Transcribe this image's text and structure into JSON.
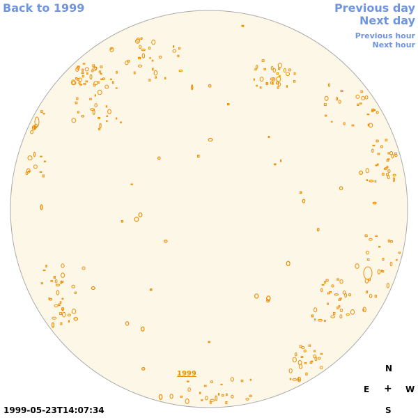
{
  "nav": {
    "back_label": "Back to 1999",
    "prev_day_label": "Previous day",
    "next_day_label": "Next day",
    "prev_hour_label": "Previous hour",
    "next_hour_label": "Next hour"
  },
  "compass": {
    "north": "N",
    "south": "S",
    "east": "E",
    "west": "W",
    "center": "+"
  },
  "timestamp": "1999-05-23T14:07:34",
  "year_label": "1999",
  "colors": {
    "link": "#6f94e0",
    "disk_fill": "#fdf7e8",
    "disk_stroke": "#aaaaaa",
    "contour": "#f08c00",
    "text": "#000000"
  }
}
